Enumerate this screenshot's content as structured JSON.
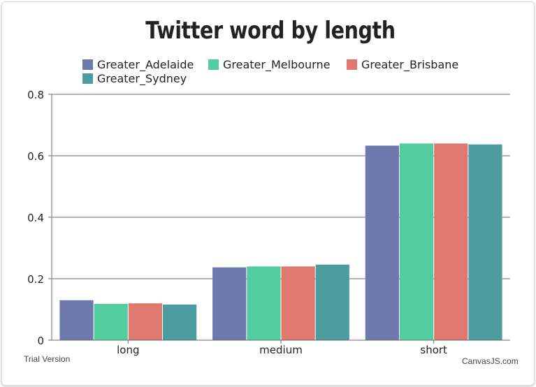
{
  "chart_data": {
    "type": "bar",
    "title": "Twitter word by length",
    "categories": [
      "long",
      "medium",
      "short"
    ],
    "series": [
      {
        "name": "Greater_Adelaide",
        "color": "#6D78AD",
        "values": [
          0.13,
          0.237,
          0.633
        ]
      },
      {
        "name": "Greater_Melbourne",
        "color": "#51CDA0",
        "values": [
          0.118,
          0.24,
          0.64
        ]
      },
      {
        "name": "Greater_Brisbane",
        "color": "#DF7970",
        "values": [
          0.12,
          0.24,
          0.64
        ]
      },
      {
        "name": "Greater_Sydney",
        "color": "#4C9CA0",
        "values": [
          0.116,
          0.246,
          0.637
        ]
      }
    ],
    "ylim": [
      0,
      0.8
    ],
    "yticks": [
      "0",
      "0.2",
      "0.4",
      "0.6",
      "0.8"
    ],
    "grid": true,
    "legend_position": "top"
  },
  "footer": {
    "left": "Trial Version",
    "right": "CanvasJS.com"
  }
}
